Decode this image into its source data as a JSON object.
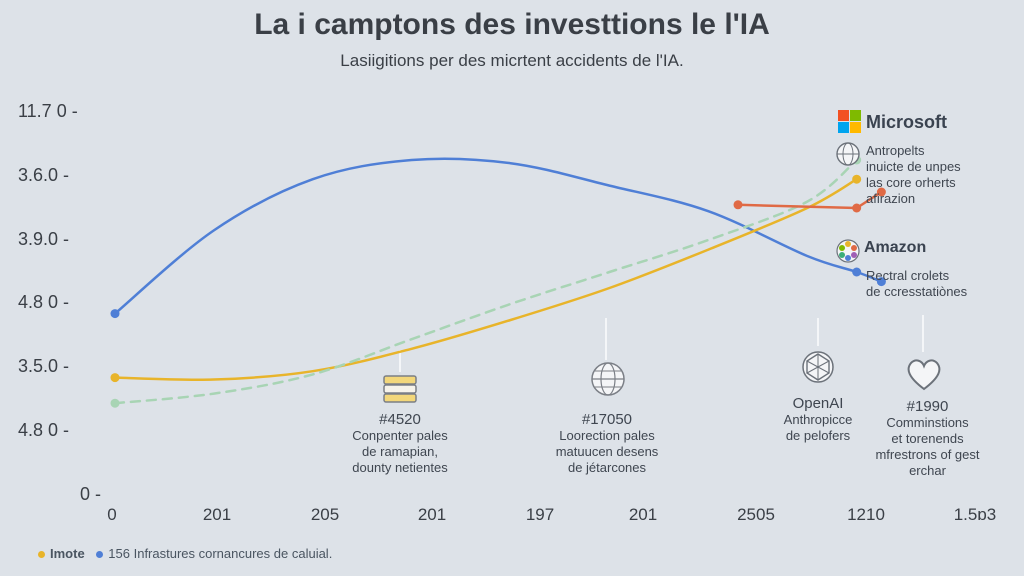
{
  "colors": {
    "blue": "#4f7fd6",
    "orange": "#e8b42a",
    "green": "#a8d4b4",
    "red": "#e06a45"
  },
  "title": "La i camptons des investtions le l'IA",
  "subtitle": "Lasiigitions per des micrtent accidents de l'IA.",
  "chart_data": {
    "type": "line",
    "y_ticks": [
      "11.7 0 -",
      "3.6.0 -",
      "3.9.0 -",
      "4.8 0 -",
      "3.5.0 -",
      "4.8 0 -",
      "0 -"
    ],
    "x_ticks": [
      "0",
      "201",
      "205",
      "201",
      "197",
      "201",
      "2505",
      "1210",
      "1.5ɒ3"
    ],
    "y_domain": [
      0,
      6
    ],
    "x_domain": [
      0,
      9
    ],
    "series": [
      {
        "color": "blue",
        "style": "solid",
        "points": [
          [
            0,
            2.85
          ],
          [
            1,
            4.15
          ],
          [
            2,
            4.95
          ],
          [
            3,
            5.25
          ],
          [
            4,
            5.2
          ],
          [
            5,
            4.85
          ],
          [
            6,
            4.45
          ],
          [
            7,
            3.75
          ],
          [
            7.5,
            3.5
          ],
          [
            7.75,
            3.35
          ]
        ]
      },
      {
        "color": "orange",
        "style": "solid",
        "points": [
          [
            0,
            1.85
          ],
          [
            1,
            1.82
          ],
          [
            2,
            1.95
          ],
          [
            3,
            2.3
          ],
          [
            4,
            2.75
          ],
          [
            5,
            3.25
          ],
          [
            6,
            3.85
          ],
          [
            7,
            4.5
          ],
          [
            7.5,
            4.95
          ]
        ]
      },
      {
        "color": "green",
        "style": "dashed",
        "points": [
          [
            0,
            1.45
          ],
          [
            1,
            1.6
          ],
          [
            2,
            1.9
          ],
          [
            3,
            2.45
          ],
          [
            4,
            3.0
          ],
          [
            5,
            3.5
          ],
          [
            6,
            4.0
          ],
          [
            7,
            4.6
          ],
          [
            7.5,
            5.25
          ]
        ]
      },
      {
        "color": "red",
        "style": "solid",
        "points": [
          [
            6.3,
            4.55
          ],
          [
            7.5,
            4.5
          ],
          [
            7.75,
            4.75
          ]
        ]
      }
    ]
  },
  "annotations": [
    {
      "num": "#4520",
      "lines": [
        "Conpenter pales",
        "de ramapian,",
        "dounty netientes"
      ]
    },
    {
      "num": "#17050",
      "lines": [
        "Loorection pales",
        "matuucen desens",
        "de jétarcones"
      ]
    },
    {
      "num": "OpenAI",
      "lines": [
        "Anthropicce",
        "de pelofers"
      ]
    },
    {
      "num": "#1990",
      "lines": [
        "Comminstions",
        "et torenends",
        "mfrestrons of gest",
        "erchar"
      ]
    }
  ],
  "brands": {
    "microsoft": "Microsoft",
    "amazon": "Amazon",
    "microsoft_note": [
      "Antropelts",
      "inuicte de unpes",
      "las core orherts",
      "afirazion"
    ],
    "amazon_note": [
      "Rectral crolets",
      "de ccresstatiònes"
    ]
  },
  "legend": {
    "item1": "Imote",
    "item2": "156 Infrastures cornancures de caluial."
  }
}
